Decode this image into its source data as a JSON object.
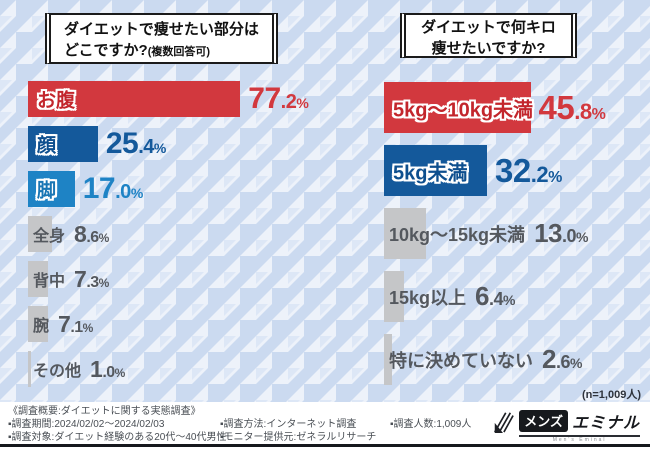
{
  "page": {
    "n_label": "(n=1,009人)"
  },
  "colors": {
    "red": "#d2383e",
    "blue": "#14599b",
    "light_blue": "#1e83c5",
    "gray": "#c5c6c8",
    "text_dark_gray": "#54585e",
    "background_base": "#edf2fa",
    "background_pattern": "#cbdaf0"
  },
  "charts": {
    "percent_sign": "%",
    "left": {
      "title_line1": "ダイエットで痩せたい部分は",
      "title_line2": "どこですか?",
      "title_note": "(複数回答可)",
      "rows": [
        {
          "label": "お腹",
          "value": 77.2,
          "pct_int": "77",
          "pct_dec": ".2",
          "color": "red"
        },
        {
          "label": "顔",
          "value": 25.4,
          "pct_int": "25",
          "pct_dec": ".4",
          "color": "blue"
        },
        {
          "label": "脚",
          "value": 17.0,
          "pct_int": "17",
          "pct_dec": ".0",
          "color": "lightblue"
        },
        {
          "label": "全身",
          "value": 8.6,
          "pct_int": "8",
          "pct_dec": ".6",
          "color": "gray"
        },
        {
          "label": "背中",
          "value": 7.3,
          "pct_int": "7",
          "pct_dec": ".3",
          "color": "gray"
        },
        {
          "label": "腕",
          "value": 7.1,
          "pct_int": "7",
          "pct_dec": ".1",
          "color": "gray"
        },
        {
          "label": "その他",
          "value": 1.0,
          "pct_int": "1",
          "pct_dec": ".0",
          "color": "gray"
        }
      ]
    },
    "right": {
      "title_line1": "ダイエットで何キロ",
      "title_line2": "痩せたいですか?",
      "rows": [
        {
          "label": "5kg〜10kg未満",
          "value": 45.8,
          "pct_int": "45",
          "pct_dec": ".8",
          "color": "red"
        },
        {
          "label": "5kg未満",
          "value": 32.2,
          "pct_int": "32",
          "pct_dec": ".2",
          "color": "blue"
        },
        {
          "label": "10kg〜15kg未満",
          "value": 13.0,
          "pct_int": "13",
          "pct_dec": ".0",
          "color": "gray"
        },
        {
          "label": "15kg以上",
          "value": 6.4,
          "pct_int": "6",
          "pct_dec": ".4",
          "color": "gray"
        },
        {
          "label": "特に決めていない",
          "value": 2.6,
          "pct_int": "2",
          "pct_dec": ".6",
          "color": "gray"
        }
      ]
    }
  },
  "chart_data": [
    {
      "type": "bar",
      "orientation": "horizontal",
      "title": "ダイエットで痩せたい部分はどこですか?(複数回答可)",
      "categories": [
        "お腹",
        "顔",
        "脚",
        "全身",
        "背中",
        "腕",
        "その他"
      ],
      "values": [
        77.2,
        25.4,
        17.0,
        8.6,
        7.3,
        7.1,
        1.0
      ],
      "unit": "%",
      "xlabel": "",
      "ylabel": "",
      "xlim": [
        0,
        100
      ],
      "grid": false,
      "sample_note": "(n=1,009人)"
    },
    {
      "type": "bar",
      "orientation": "horizontal",
      "title": "ダイエットで何キロ痩せたいですか?",
      "categories": [
        "5kg〜10kg未満",
        "5kg未満",
        "10kg〜15kg未満",
        "15kg以上",
        "特に決めていない"
      ],
      "values": [
        45.8,
        32.2,
        13.0,
        6.4,
        2.6
      ],
      "unit": "%",
      "xlabel": "",
      "ylabel": "",
      "xlim": [
        0,
        100
      ],
      "grid": false,
      "sample_note": "(n=1,009人)"
    }
  ],
  "footer": {
    "summary": "《調査概要:ダイエットに関する実態調査》",
    "period": "▪調査期間:2024/02/02〜2024/02/03",
    "target": "▪調査対象:ダイエット経験のある20代〜40代男性",
    "method": "▪調査方法:インターネット調査",
    "monitor": "▪モニター提供元:ゼネラルリサーチ",
    "count": "▪調査人数:1,009人",
    "logo": {
      "badge": "メンズ",
      "name": "エミナル",
      "sub": "Men's Eminal"
    }
  }
}
